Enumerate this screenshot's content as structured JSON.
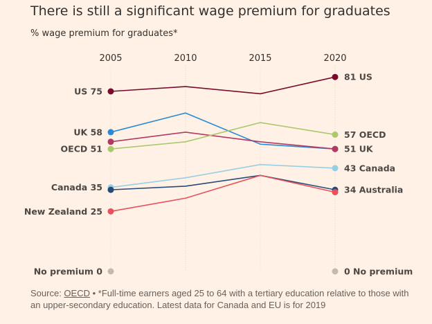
{
  "chart_data": {
    "type": "line",
    "title": "There is still a significant wage premium for graduates",
    "subtitle": "% wage premium for graduates*",
    "x": [
      2005,
      2010,
      2015,
      2020
    ],
    "ylim": [
      0,
      85
    ],
    "grid": "vertical dotted at each year",
    "series": [
      {
        "name": "US",
        "color": "#7a0a2c",
        "values": [
          75,
          77,
          74,
          81
        ],
        "start_label": "US 75",
        "end_label": "81 US"
      },
      {
        "name": "UK",
        "color": "#2a8ad4",
        "values": [
          58,
          66,
          53,
          51
        ],
        "start_label": "UK 58",
        "end_label": "51 UK"
      },
      {
        "name": "",
        "color": "#b03a63",
        "values": [
          54,
          58,
          54,
          51
        ],
        "start_label": "",
        "end_label": ""
      },
      {
        "name": "OECD",
        "color": "#a9c96a",
        "values": [
          51,
          54,
          62,
          57
        ],
        "start_label": "OECD 51",
        "end_label": "57 OECD"
      },
      {
        "name": "Canada",
        "color": "#96cfe3",
        "values": [
          35,
          39,
          44.5,
          43
        ],
        "start_label": "Canada 35",
        "end_label": "43 Canada"
      },
      {
        "name": "Australia",
        "color": "#264a7a",
        "values": [
          34,
          35.5,
          40,
          34
        ],
        "start_label": "",
        "end_label": "34 Australia"
      },
      {
        "name": "New Zealand",
        "color": "#e8505b",
        "values": [
          25,
          30.5,
          40,
          33
        ],
        "start_label": "New Zealand 25",
        "end_label": ""
      },
      {
        "name": "No premium",
        "color": "#c2b9b0",
        "values": [
          0,
          null,
          null,
          0
        ],
        "start_label": "No premium 0",
        "end_label": "0 No premium"
      }
    ]
  },
  "footer": {
    "source_prefix": "Source: ",
    "source_link": "OECD",
    "note": " • *Full-time earners aged 25 to 64 with a tertiary education relative to those with an upper-secondary education. Latest data for Canada and EU is for 2019"
  }
}
